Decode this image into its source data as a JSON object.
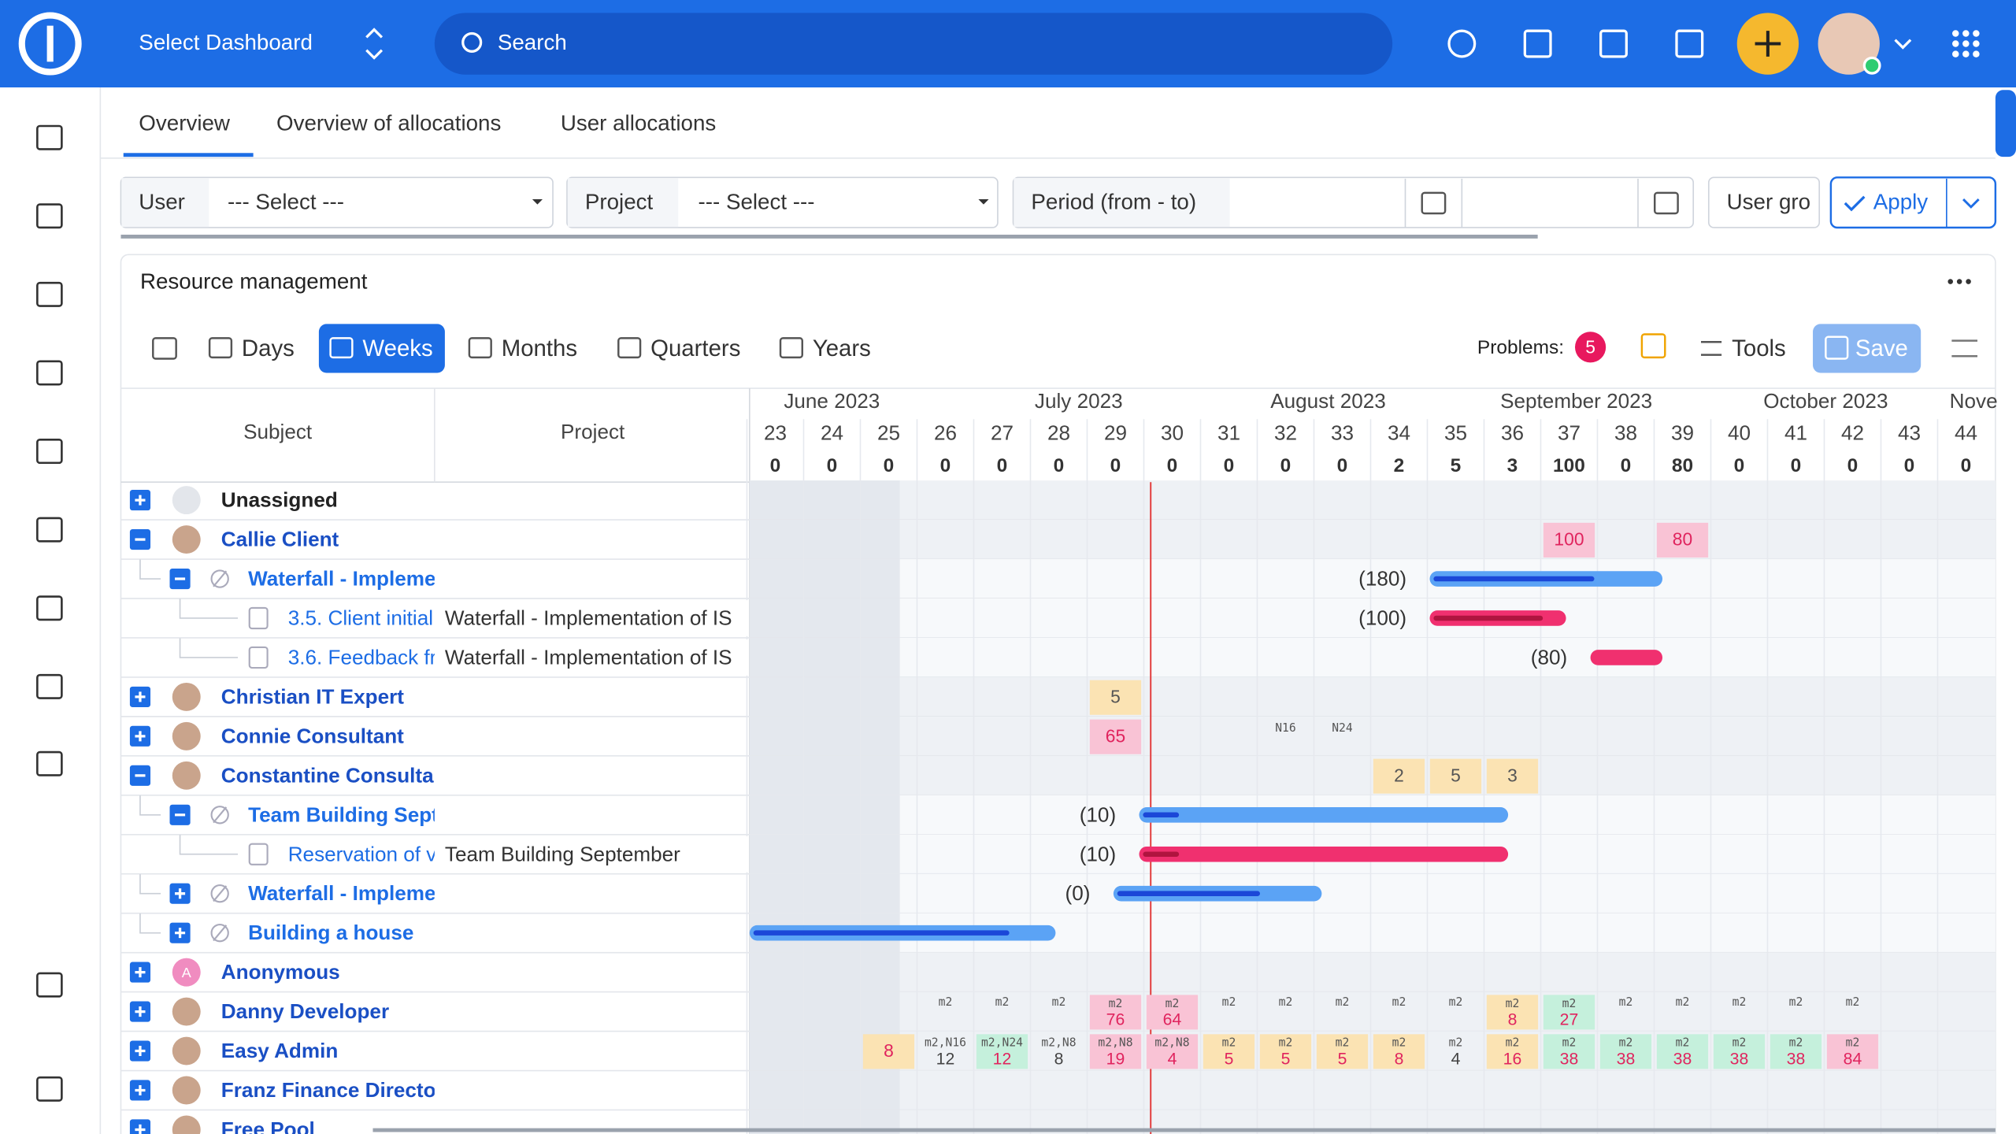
{
  "header": {
    "dashboard": "Select Dashboard",
    "search": "Search"
  },
  "tabs": [
    "Overview",
    "Overview of allocations",
    "User allocations"
  ],
  "filters": {
    "user": "User",
    "user_select": "--- Select ---",
    "project": "Project",
    "project_select": "--- Select ---",
    "period": "Period (from - to)",
    "user_group": "User gro",
    "apply": "Apply"
  },
  "panel": {
    "title": "Resource management",
    "zoom": [
      "Days",
      "Weeks",
      "Months",
      "Quarters",
      "Years"
    ],
    "problems_label": "Problems:",
    "problems": 5,
    "tools": "Tools",
    "save": "Save"
  },
  "table": {
    "columns": [
      "Subject",
      "Project"
    ],
    "months": [
      "June 2023",
      "July 2023",
      "August 2023",
      "September 2023",
      "October 2023",
      "Nove"
    ],
    "weeks": [
      23,
      24,
      25,
      26,
      27,
      28,
      29,
      30,
      31,
      32,
      33,
      34,
      35,
      36,
      37,
      38,
      39,
      40,
      41,
      42,
      43,
      44
    ],
    "totals": [
      0,
      0,
      0,
      0,
      0,
      0,
      0,
      0,
      0,
      0,
      0,
      2,
      5,
      3,
      100,
      0,
      80,
      0,
      0,
      0,
      0,
      0
    ],
    "rows": [
      {
        "name": "Unassigned"
      },
      {
        "name": "Callie Client",
        "cells": {
          "37": {
            "value": 100,
            "color": "#f9c3d5"
          },
          "39": {
            "value": 80,
            "color": "#f9c3d5"
          }
        }
      },
      {
        "name": "Waterfall - Implementation of IS",
        "load": "(180)"
      },
      {
        "name": "3.5. Client initial",
        "project": "Waterfall - Implementation of IS",
        "load": "(100)"
      },
      {
        "name": "3.6. Feedback fr",
        "project": "Waterfall - Implementation of IS",
        "load": "(80)"
      },
      {
        "name": "Christian IT Expert",
        "cells": {
          "29": {
            "value": 5,
            "color": "#fbe3b3"
          }
        }
      },
      {
        "name": "Connie Consultant",
        "cells": {
          "29": {
            "value": 65,
            "color": "#f9c3d5"
          }
        },
        "notes": {
          "32": "N16",
          "33": "N24"
        }
      },
      {
        "name": "Constantine Consultant",
        "cells": {
          "34": {
            "value": 2,
            "color": "#fbe3b3"
          },
          "35": {
            "value": 5,
            "color": "#fbe3b3"
          },
          "36": {
            "value": 3,
            "color": "#fbe3b3"
          }
        }
      },
      {
        "name": "Team Building September",
        "load": "(10)"
      },
      {
        "name": "Reservation of v",
        "project": "Team Building September",
        "load": "(10)"
      },
      {
        "name": "Waterfall - Implementation of IS",
        "load": "(0)"
      },
      {
        "name": "Building a house"
      },
      {
        "name": "Anonymous",
        "avatar": "A"
      },
      {
        "name": "Danny Developer",
        "cells": {
          "26": {
            "top": "m2"
          },
          "27": {
            "top": "m2"
          },
          "28": {
            "top": "m2"
          },
          "29": {
            "top": "m2",
            "value": 76,
            "color": "#f9c3d5"
          },
          "30": {
            "top": "m2",
            "value": 64,
            "color": "#f9c3d5"
          },
          "31": {
            "top": "m2"
          },
          "32": {
            "top": "m2"
          },
          "33": {
            "top": "m2"
          },
          "34": {
            "top": "m2"
          },
          "35": {
            "top": "m2"
          },
          "36": {
            "top": "m2",
            "value": 8,
            "color": "#fbe3b3"
          },
          "37": {
            "top": "m2",
            "value": 27,
            "color": "#c5f0dc"
          },
          "38": {
            "top": "m2"
          },
          "39": {
            "top": "m2"
          },
          "40": {
            "top": "m2"
          },
          "41": {
            "top": "m2"
          },
          "42": {
            "top": "m2"
          }
        }
      },
      {
        "name": "Easy Admin",
        "cells": {
          "25": {
            "value": 8,
            "color": "#fbe3b3"
          },
          "26": {
            "top": "m2,N16",
            "value": 12
          },
          "27": {
            "top": "m2,N24",
            "value": 12,
            "color": "#c5f0dc"
          },
          "28": {
            "top": "m2,N8",
            "value": 8
          },
          "29": {
            "top": "m2,N8",
            "value": 19,
            "color": "#f9c3d5"
          },
          "30": {
            "top": "m2,N8",
            "value": 4,
            "color": "#f9c3d5"
          },
          "31": {
            "top": "m2",
            "value": 5,
            "color": "#fbe3b3"
          },
          "32": {
            "top": "m2",
            "value": 5,
            "color": "#fbe3b3"
          },
          "33": {
            "top": "m2",
            "value": 5,
            "color": "#fbe3b3"
          },
          "34": {
            "top": "m2",
            "value": 8,
            "color": "#fbe3b3"
          },
          "35": {
            "top": "m2",
            "value": 4
          },
          "36": {
            "top": "m2",
            "value": 16,
            "color": "#fbe3b3"
          },
          "37": {
            "top": "m2",
            "value": 38,
            "color": "#c5f0dc"
          },
          "38": {
            "top": "m2",
            "value": 38,
            "color": "#c5f0dc"
          },
          "39": {
            "top": "m2",
            "value": 38,
            "color": "#c5f0dc"
          },
          "40": {
            "top": "m2",
            "value": 38,
            "color": "#c5f0dc"
          },
          "41": {
            "top": "m2",
            "value": 38,
            "color": "#c5f0dc"
          },
          "42": {
            "top": "m2",
            "value": 84,
            "color": "#f9c3d5"
          }
        }
      },
      {
        "name": "Franz Finance Director"
      },
      {
        "name": "Free Pool"
      }
    ]
  }
}
